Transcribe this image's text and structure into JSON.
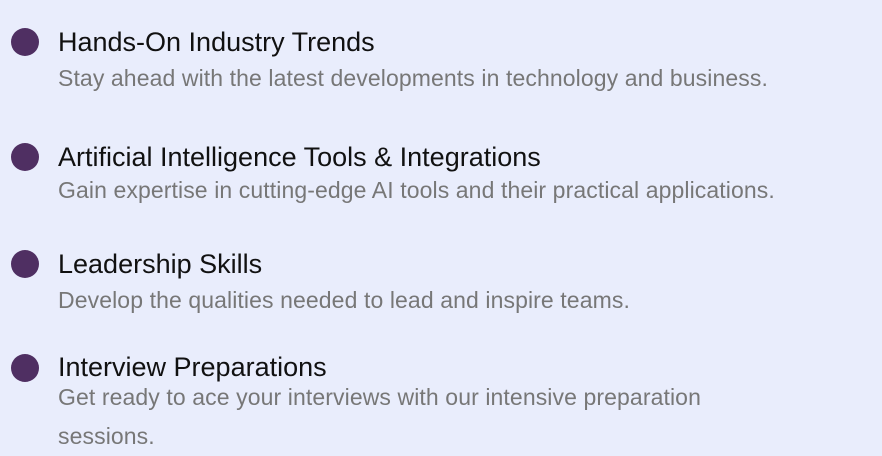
{
  "colors": {
    "background": "#e9edfc",
    "bullet": "#4f2f62",
    "title": "#111111",
    "description": "#777777"
  },
  "features": [
    {
      "title": "Hands-On Industry Trends",
      "description": "Stay ahead with the latest developments in technology and business."
    },
    {
      "title": "Artificial Intelligence Tools & Integrations",
      "description": "Gain expertise in cutting-edge AI tools and their practical applications."
    },
    {
      "title": "Leadership Skills",
      "description": "Develop the qualities needed to lead and inspire teams."
    },
    {
      "title": "Interview Preparations",
      "description": "Get ready to ace your interviews with our intensive preparation sessions."
    }
  ]
}
